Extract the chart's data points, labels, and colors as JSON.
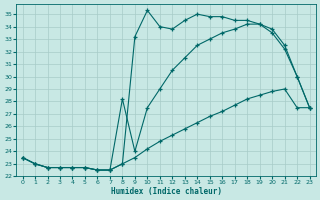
{
  "bg_color": "#c8e8e4",
  "grid_color": "#a8ccc8",
  "line_color": "#006868",
  "xlim": [
    -0.5,
    23.5
  ],
  "ylim": [
    22.0,
    35.8
  ],
  "xticks": [
    0,
    1,
    2,
    3,
    4,
    5,
    6,
    7,
    8,
    9,
    10,
    11,
    12,
    13,
    14,
    15,
    16,
    17,
    18,
    19,
    20,
    21,
    22,
    23
  ],
  "yticks": [
    22,
    23,
    24,
    25,
    26,
    27,
    28,
    29,
    30,
    31,
    32,
    33,
    34,
    35
  ],
  "xlabel": "Humidex (Indice chaleur)",
  "curve1_x": [
    0,
    1,
    2,
    3,
    4,
    5,
    6,
    7,
    8,
    9,
    10,
    11,
    12,
    13,
    14,
    15,
    16,
    17,
    18,
    19,
    20,
    21,
    22,
    23
  ],
  "curve1_y": [
    23.5,
    23.0,
    22.7,
    22.7,
    22.7,
    22.7,
    22.5,
    22.5,
    23.0,
    33.2,
    35.3,
    34.0,
    33.8,
    34.5,
    35.0,
    34.8,
    34.8,
    34.5,
    34.5,
    34.2,
    33.5,
    32.2,
    30.0,
    27.5
  ],
  "curve2_x": [
    0,
    1,
    2,
    3,
    4,
    5,
    6,
    7,
    8,
    9,
    10,
    11,
    12,
    13,
    14,
    15,
    16,
    17,
    18,
    19,
    20,
    21,
    22,
    23
  ],
  "curve2_y": [
    23.5,
    23.0,
    22.7,
    22.7,
    22.7,
    22.7,
    22.5,
    22.5,
    28.2,
    24.0,
    27.5,
    29.0,
    30.5,
    31.5,
    32.5,
    33.0,
    33.5,
    33.8,
    34.2,
    34.2,
    33.8,
    32.5,
    30.0,
    27.5
  ],
  "curve3_x": [
    0,
    1,
    2,
    3,
    4,
    5,
    6,
    7,
    8,
    9,
    10,
    11,
    12,
    13,
    14,
    15,
    16,
    17,
    18,
    19,
    20,
    21,
    22,
    23
  ],
  "curve3_y": [
    23.5,
    23.0,
    22.7,
    22.7,
    22.7,
    22.7,
    22.5,
    22.5,
    23.0,
    23.5,
    24.2,
    24.8,
    25.3,
    25.8,
    26.3,
    26.8,
    27.2,
    27.7,
    28.2,
    28.5,
    28.8,
    29.0,
    27.5,
    27.5
  ]
}
